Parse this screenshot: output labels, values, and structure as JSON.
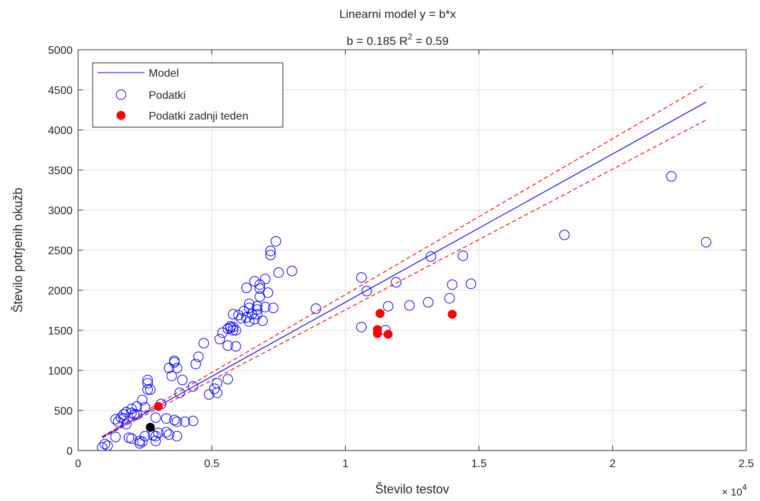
{
  "chart_data": {
    "type": "scatter",
    "title_line1": "Linearni model y = b*x",
    "title_line2_prefix": "b = 0.185 R",
    "title_line2_sup": "2",
    "title_line2_suffix": " = 0.59",
    "xlabel": "Število testov",
    "ylabel": "Število potrjenih okužb",
    "x_exponent_base": "× 10",
    "x_exponent_power": "4",
    "xlim": [
      0,
      2.5
    ],
    "ylim": [
      0,
      5000
    ],
    "x_ticks": [
      0,
      0.5,
      1,
      1.5,
      2,
      2.5
    ],
    "x_tick_labels": [
      "0",
      "0.5",
      "1",
      "1.5",
      "2",
      "2.5"
    ],
    "y_ticks": [
      0,
      500,
      1000,
      1500,
      2000,
      2500,
      3000,
      3500,
      4000,
      4500,
      5000
    ],
    "y_tick_labels": [
      "0",
      "500",
      "1000",
      "1500",
      "2000",
      "2500",
      "3000",
      "3500",
      "4000",
      "4500",
      "5000"
    ],
    "grid": true,
    "legend_position": "top-left",
    "colors": {
      "model": "#0000ff",
      "data": "#0000ff",
      "last_week": "#ff0000",
      "confidence": "#ff0000",
      "highlight": "#000000"
    },
    "model": {
      "name": "Model",
      "slope": 0.185,
      "x_range": [
        0.09,
        2.35
      ]
    },
    "confidence_band": {
      "upper_slope": 0.1945,
      "lower_slope": 0.1755,
      "x_range": [
        0.09,
        2.35
      ]
    },
    "series": [
      {
        "name": "Podatki",
        "points": [
          [
            0.09,
            40
          ],
          [
            0.1,
            80
          ],
          [
            0.11,
            60
          ],
          [
            0.14,
            170
          ],
          [
            0.14,
            390
          ],
          [
            0.15,
            360
          ],
          [
            0.16,
            410
          ],
          [
            0.17,
            450
          ],
          [
            0.17,
            400
          ],
          [
            0.18,
            480
          ],
          [
            0.18,
            330
          ],
          [
            0.19,
            160
          ],
          [
            0.2,
            520
          ],
          [
            0.2,
            150
          ],
          [
            0.2,
            470
          ],
          [
            0.21,
            450
          ],
          [
            0.22,
            550
          ],
          [
            0.22,
            450
          ],
          [
            0.23,
            90
          ],
          [
            0.23,
            120
          ],
          [
            0.24,
            110
          ],
          [
            0.24,
            630
          ],
          [
            0.25,
            180
          ],
          [
            0.25,
            540
          ],
          [
            0.26,
            880
          ],
          [
            0.26,
            840
          ],
          [
            0.26,
            760
          ],
          [
            0.27,
            760
          ],
          [
            0.28,
            190
          ],
          [
            0.29,
            180
          ],
          [
            0.29,
            120
          ],
          [
            0.29,
            410
          ],
          [
            0.3,
            220
          ],
          [
            0.31,
            580
          ],
          [
            0.33,
            230
          ],
          [
            0.33,
            400
          ],
          [
            0.34,
            200
          ],
          [
            0.34,
            1030
          ],
          [
            0.35,
            930
          ],
          [
            0.36,
            1100
          ],
          [
            0.36,
            1120
          ],
          [
            0.36,
            380
          ],
          [
            0.37,
            180
          ],
          [
            0.37,
            1030
          ],
          [
            0.37,
            360
          ],
          [
            0.38,
            720
          ],
          [
            0.39,
            880
          ],
          [
            0.4,
            360
          ],
          [
            0.43,
            800
          ],
          [
            0.43,
            370
          ],
          [
            0.44,
            1080
          ],
          [
            0.45,
            1170
          ],
          [
            0.47,
            1340
          ],
          [
            0.49,
            700
          ],
          [
            0.51,
            770
          ],
          [
            0.52,
            840
          ],
          [
            0.52,
            720
          ],
          [
            0.53,
            1390
          ],
          [
            0.54,
            1470
          ],
          [
            0.56,
            890
          ],
          [
            0.56,
            1310
          ],
          [
            0.56,
            1520
          ],
          [
            0.57,
            1550
          ],
          [
            0.57,
            1530
          ],
          [
            0.58,
            1700
          ],
          [
            0.58,
            1540
          ],
          [
            0.58,
            1500
          ],
          [
            0.59,
            1500
          ],
          [
            0.59,
            1300
          ],
          [
            0.6,
            1690
          ],
          [
            0.61,
            1650
          ],
          [
            0.62,
            1740
          ],
          [
            0.63,
            1660
          ],
          [
            0.63,
            2030
          ],
          [
            0.64,
            1830
          ],
          [
            0.64,
            1780
          ],
          [
            0.64,
            1610
          ],
          [
            0.65,
            1700
          ],
          [
            0.66,
            1640
          ],
          [
            0.66,
            2110
          ],
          [
            0.67,
            1800
          ],
          [
            0.67,
            1760
          ],
          [
            0.67,
            1700
          ],
          [
            0.68,
            2070
          ],
          [
            0.68,
            2020
          ],
          [
            0.68,
            1920
          ],
          [
            0.69,
            1620
          ],
          [
            0.7,
            1790
          ],
          [
            0.7,
            2140
          ],
          [
            0.71,
            1970
          ],
          [
            0.72,
            2440
          ],
          [
            0.72,
            2490
          ],
          [
            0.73,
            1780
          ],
          [
            0.74,
            2610
          ],
          [
            0.75,
            2220
          ],
          [
            0.8,
            2240
          ],
          [
            0.89,
            1770
          ],
          [
            1.06,
            1540
          ],
          [
            1.06,
            2160
          ],
          [
            1.08,
            1990
          ],
          [
            1.15,
            1500
          ],
          [
            1.16,
            1800
          ],
          [
            1.19,
            2100
          ],
          [
            1.24,
            1810
          ],
          [
            1.31,
            1850
          ],
          [
            1.32,
            2420
          ],
          [
            1.39,
            1900
          ],
          [
            1.4,
            2070
          ],
          [
            1.44,
            2430
          ],
          [
            1.47,
            2080
          ],
          [
            1.82,
            2690
          ],
          [
            2.22,
            3420
          ],
          [
            2.35,
            2600
          ]
        ]
      },
      {
        "name": "Podatki zadnji teden",
        "points": [
          [
            0.3,
            550
          ],
          [
            1.12,
            1510
          ],
          [
            1.12,
            1460
          ],
          [
            1.13,
            1710
          ],
          [
            1.16,
            1450
          ],
          [
            1.4,
            1700
          ]
        ]
      },
      {
        "points": [
          [
            0.27,
            290
          ]
        ]
      }
    ]
  }
}
